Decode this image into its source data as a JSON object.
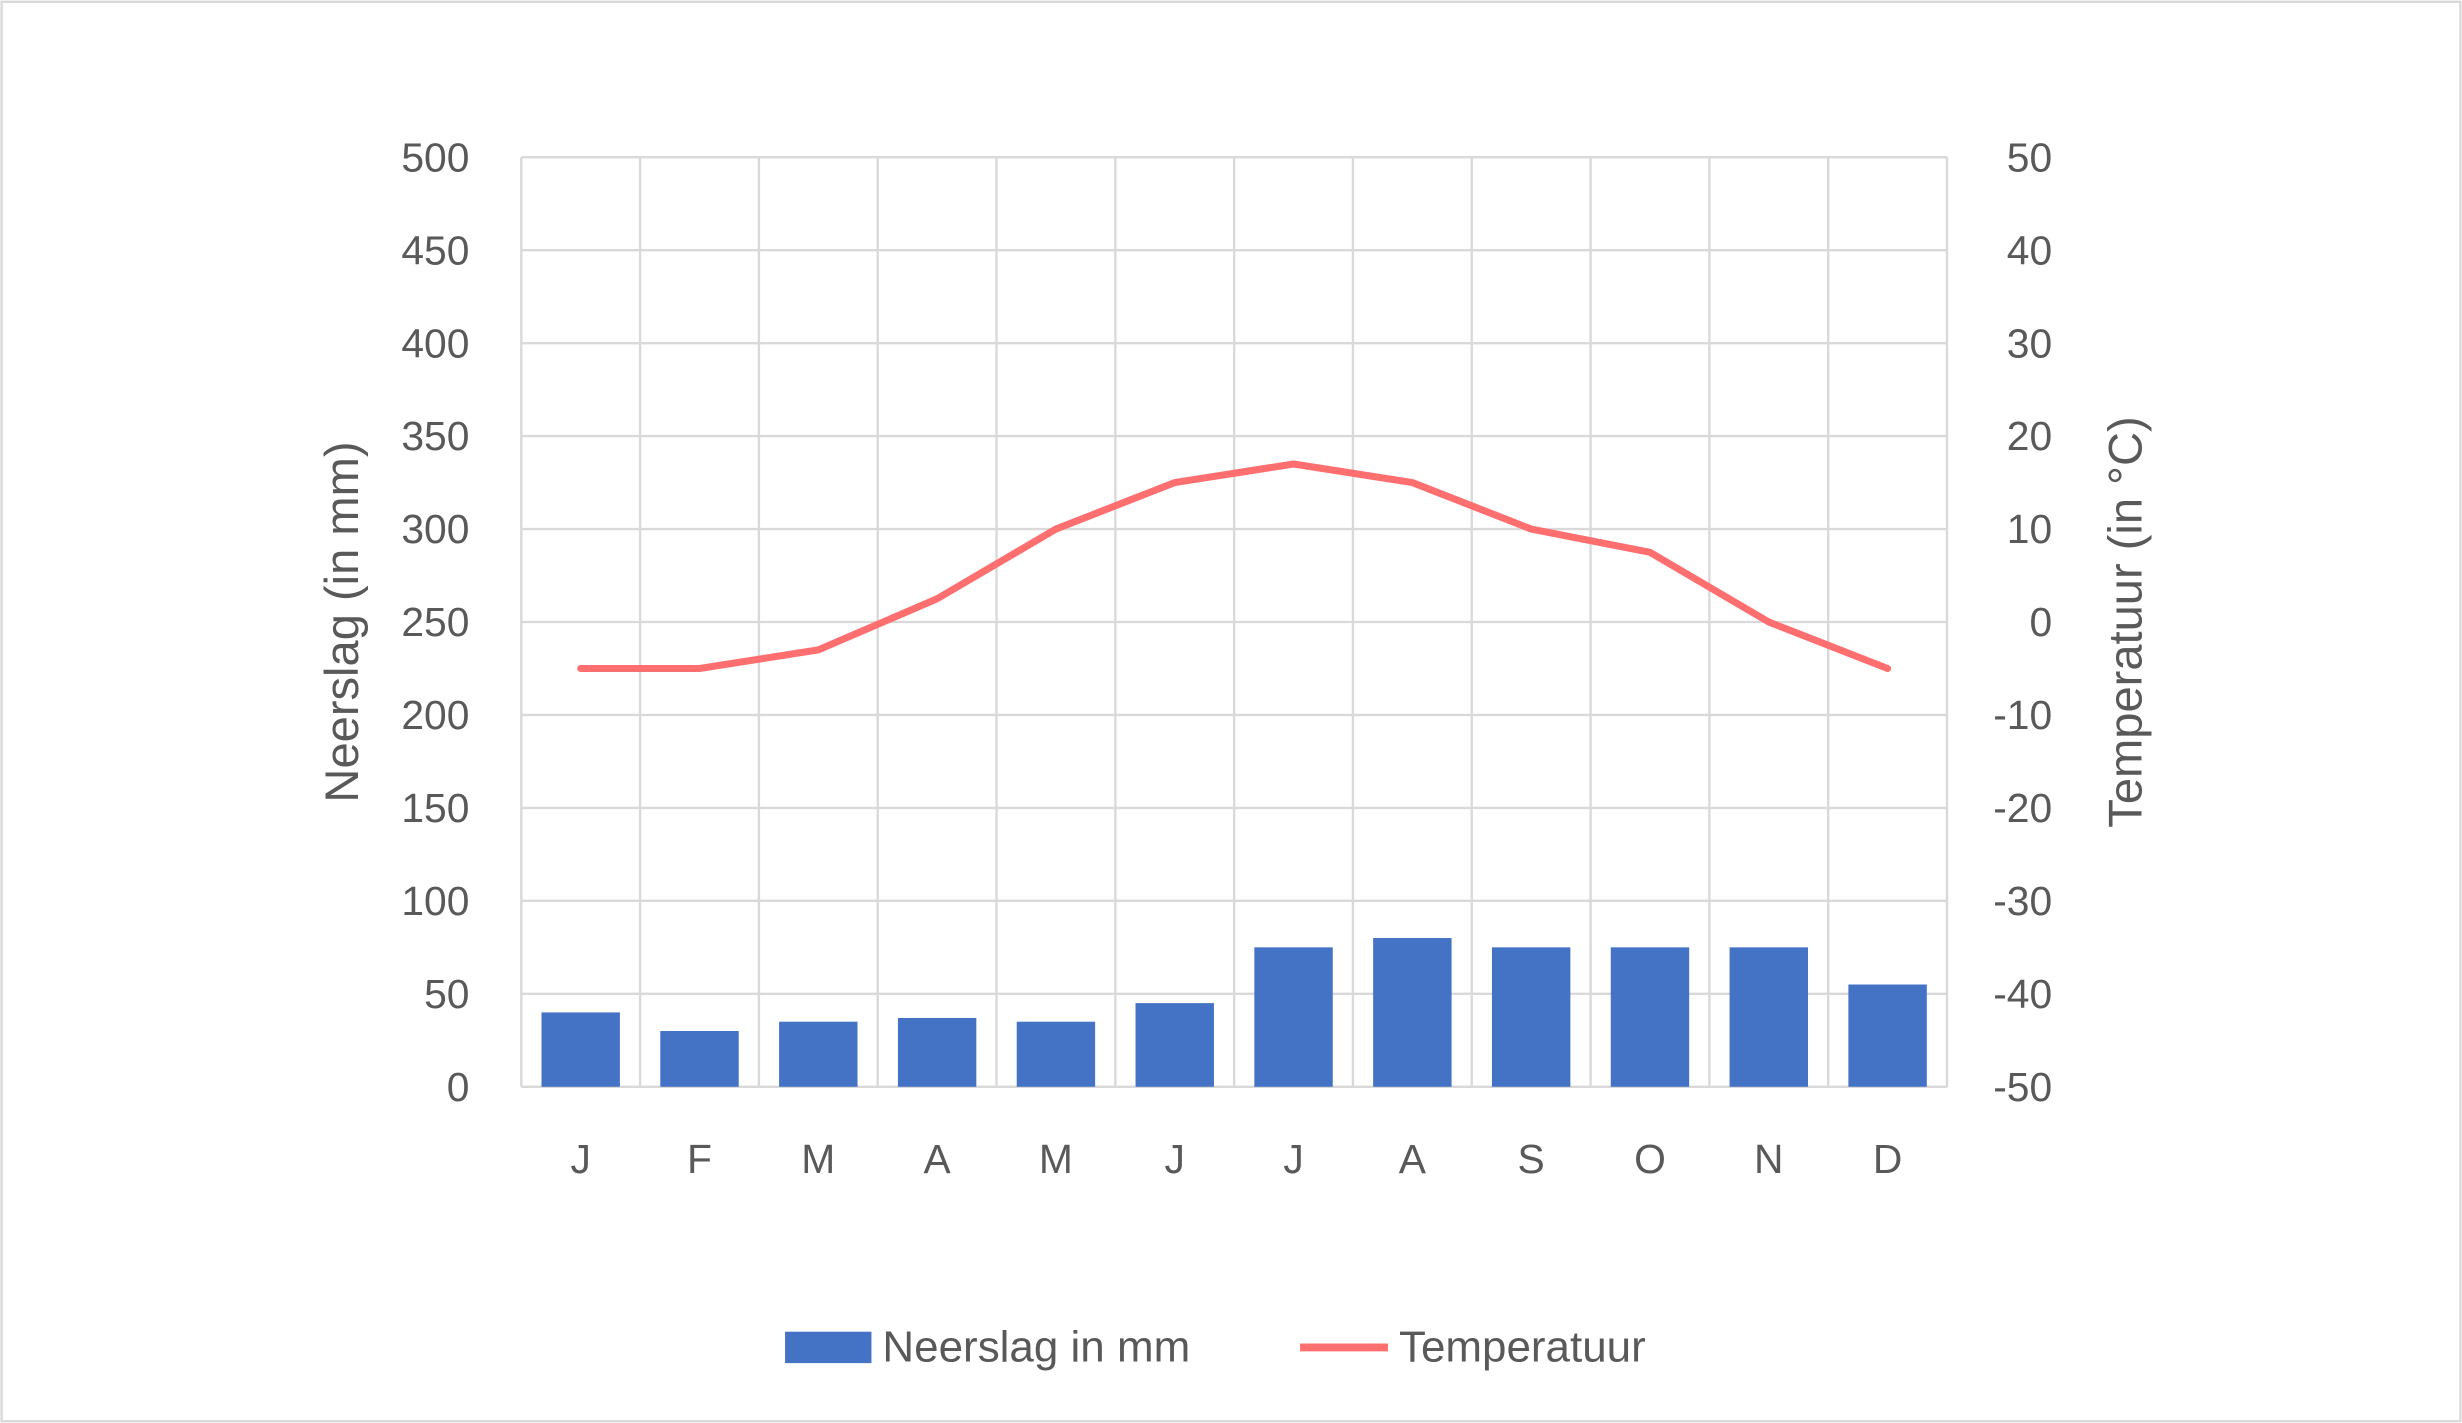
{
  "chart_data": {
    "type": "bar+line",
    "categories": [
      "J",
      "F",
      "M",
      "A",
      "M",
      "J",
      "J",
      "A",
      "S",
      "O",
      "N",
      "D"
    ],
    "series": [
      {
        "name": "Neerslag in mm",
        "type": "bar",
        "axis": "left",
        "color": "#4472C4",
        "values": [
          40,
          30,
          35,
          37,
          35,
          45,
          75,
          80,
          75,
          75,
          75,
          55
        ]
      },
      {
        "name": "Temperatuur",
        "type": "line",
        "axis": "right",
        "color": "#FF6F6F",
        "values": [
          -5,
          -5,
          -3,
          2.5,
          10,
          15,
          17,
          15,
          10,
          7.5,
          0,
          -5
        ]
      }
    ],
    "ylabel": "Neerslag (in mm)",
    "y2label": "Temperatuur (in °C)",
    "ylim": [
      0,
      500
    ],
    "y2lim": [
      -50,
      50
    ],
    "yticks": [
      "0",
      "50",
      "100",
      "150",
      "200",
      "250",
      "300",
      "350",
      "400",
      "450",
      "500"
    ],
    "y2ticks": [
      "-50",
      "-40",
      "-30",
      "-20",
      "-10",
      "0",
      "10",
      "20",
      "30",
      "40",
      "50"
    ],
    "grid": true,
    "legend": "bottom"
  }
}
